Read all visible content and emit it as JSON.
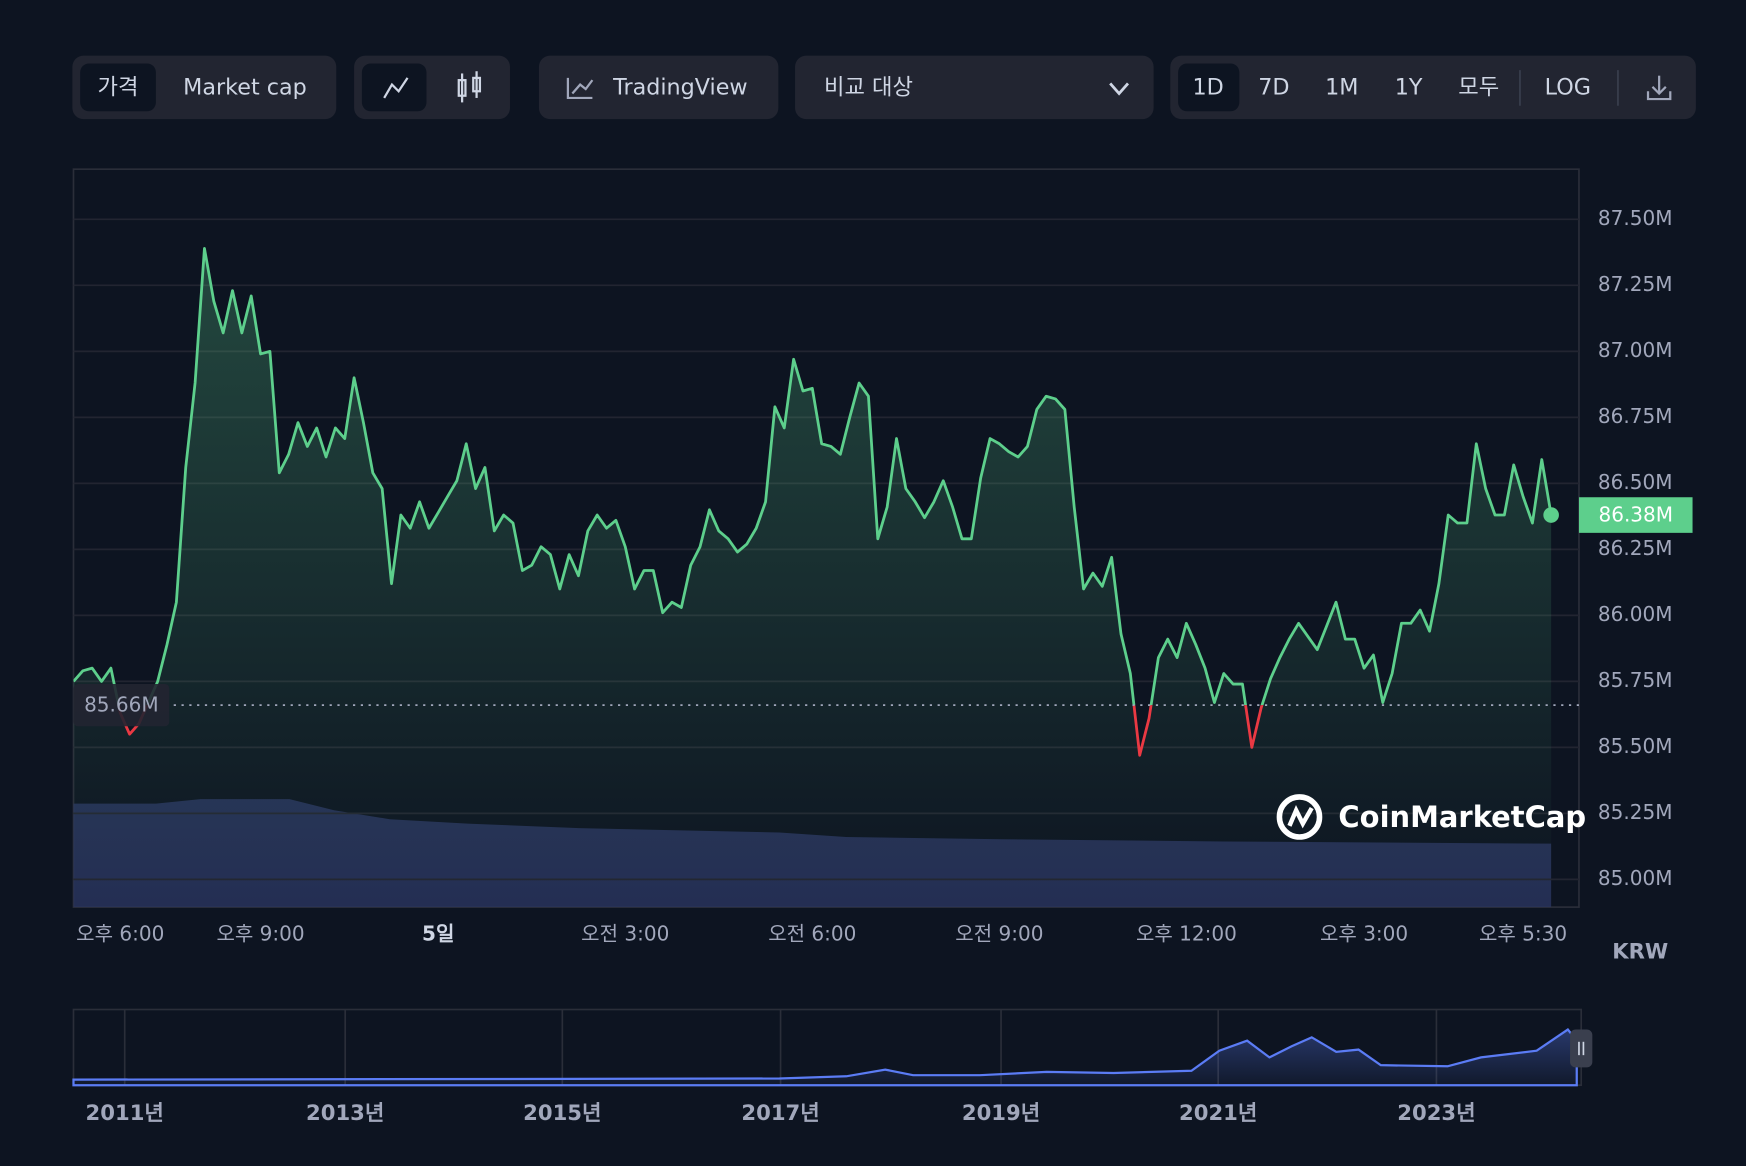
{
  "toolbar": {
    "price_tabs": [
      "가격",
      "Market cap"
    ],
    "tradingview": "TradingView",
    "compare": "비교 대상",
    "ranges": [
      "1D",
      "7D",
      "1M",
      "1Y",
      "모두"
    ],
    "log": "LOG"
  },
  "chart_data": {
    "type": "line",
    "currency": "KRW",
    "watermark": "CoinMarketCap",
    "categories": [
      null,
      null,
      null,
      null,
      null,
      "오후 6:00",
      null,
      null,
      null,
      null,
      null,
      null,
      null,
      null,
      null,
      null,
      null,
      null,
      null,
      null,
      "오후 9:00",
      null,
      null,
      null,
      null,
      null,
      null,
      null,
      null,
      null,
      null,
      null,
      null,
      null,
      null,
      null,
      null,
      null,
      null,
      "5일",
      null,
      null,
      null,
      null,
      null,
      null,
      null,
      null,
      null,
      null,
      null,
      null,
      null,
      null,
      null,
      null,
      null,
      null,
      null,
      "오전 3:00",
      null,
      null,
      null,
      null,
      null,
      null,
      null,
      null,
      null,
      null,
      null,
      null,
      null,
      null,
      null,
      null,
      null,
      null,
      null,
      "오전 6:00",
      null,
      null,
      null,
      null,
      null,
      null,
      null,
      null,
      null,
      null,
      null,
      null,
      null,
      null,
      null,
      null,
      null,
      null,
      null,
      "오전 9:00",
      null,
      null,
      null,
      null,
      null,
      null,
      null,
      null,
      null,
      null,
      null,
      null,
      null,
      null,
      null,
      null,
      null,
      null,
      null,
      "오후 12:00",
      null,
      null,
      null,
      null,
      null,
      null,
      null,
      null,
      null,
      null,
      null,
      null,
      null,
      null,
      null,
      null,
      null,
      null,
      "오후 3:00",
      null,
      null,
      null,
      null,
      null,
      null,
      null,
      null,
      null,
      null,
      null,
      null,
      null,
      null,
      null,
      null,
      "오후 5:30",
      null,
      null,
      null
    ],
    "series": [
      {
        "color": "#5dcf8c",
        "below_color": "#ea3943",
        "values": [
          85750000,
          85790000,
          85800000,
          85750000,
          85800000,
          85630000,
          85550000,
          85590000,
          85670000,
          85750000,
          85890000,
          86050000,
          86560000,
          86880000,
          87390000,
          87190000,
          87070000,
          87230000,
          87070000,
          87210000,
          86990000,
          87000000,
          86540000,
          86610000,
          86730000,
          86640000,
          86710000,
          86600000,
          86710000,
          86670000,
          86900000,
          86730000,
          86540000,
          86480000,
          86120000,
          86380000,
          86330000,
          86430000,
          86330000,
          86390000,
          86450000,
          86510000,
          86650000,
          86480000,
          86560000,
          86320000,
          86380000,
          86350000,
          86170000,
          86190000,
          86260000,
          86230000,
          86100000,
          86230000,
          86150000,
          86320000,
          86380000,
          86330000,
          86360000,
          86260000,
          86100000,
          86170000,
          86170000,
          86010000,
          86050000,
          86030000,
          86190000,
          86260000,
          86400000,
          86320000,
          86290000,
          86240000,
          86270000,
          86330000,
          86430000,
          86790000,
          86710000,
          86970000,
          86850000,
          86860000,
          86650000,
          86640000,
          86610000,
          86750000,
          86880000,
          86830000,
          86290000,
          86410000,
          86670000,
          86480000,
          86430000,
          86370000,
          86430000,
          86510000,
          86410000,
          86290000,
          86290000,
          86520000,
          86670000,
          86650000,
          86620000,
          86600000,
          86640000,
          86780000,
          86830000,
          86820000,
          86780000,
          86410000,
          86100000,
          86160000,
          86110000,
          86220000,
          85930000,
          85780000,
          85470000,
          85610000,
          85840000,
          85910000,
          85840000,
          85970000,
          85890000,
          85800000,
          85670000,
          85780000,
          85740000,
          85740000,
          85500000,
          85650000,
          85760000,
          85840000,
          85910000,
          85970000,
          85920000,
          85870000,
          85960000,
          86050000,
          85910000,
          85910000,
          85800000,
          85850000,
          85670000,
          85780000,
          85970000,
          85970000,
          86020000,
          85940000,
          86120000,
          86380000,
          86350000,
          86350000,
          86650000,
          86480000,
          86380000,
          86380000,
          86570000,
          86450000,
          86350000,
          86590000,
          86380000
        ]
      }
    ],
    "baseline": {
      "value": 85660000,
      "label": "85.66M"
    },
    "current_price": {
      "value": 86380000,
      "label": "86.38M"
    },
    "ylim": [
      84895000,
      87690000
    ],
    "yticks": [
      {
        "value": 85000000,
        "label": "85.00M"
      },
      {
        "value": 85250000,
        "label": "85.25M"
      },
      {
        "value": 85500000,
        "label": "85.50M"
      },
      {
        "value": 85750000,
        "label": "85.75M"
      },
      {
        "value": 86000000,
        "label": "86.00M"
      },
      {
        "value": 86250000,
        "label": "86.25M"
      },
      {
        "value": 86500000,
        "label": "86.50M"
      },
      {
        "value": 86750000,
        "label": "86.75M"
      },
      {
        "value": 87000000,
        "label": "87.00M"
      },
      {
        "value": 87250000,
        "label": "87.25M"
      },
      {
        "value": 87500000,
        "label": "87.50M"
      }
    ],
    "grid": true,
    "navigator_years": [
      "2011년",
      "2013년",
      "2015년",
      "2017년",
      "2019년",
      "2021년",
      "2023년"
    ]
  }
}
